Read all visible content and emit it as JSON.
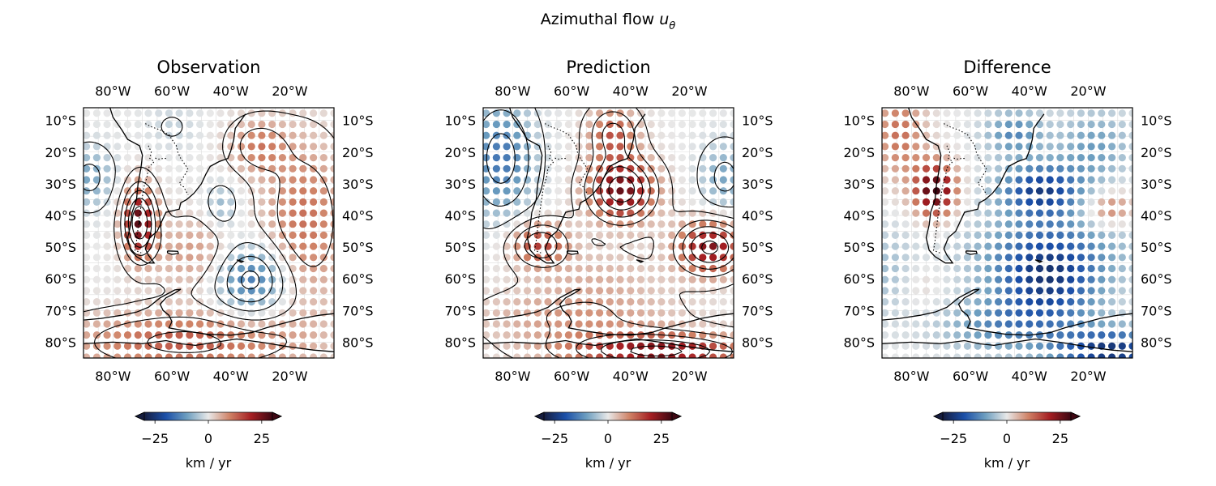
{
  "figure": {
    "title": "Azimuthal flow",
    "title_symbol": "u",
    "title_subscript": "θ"
  },
  "panels": [
    {
      "key": "observation",
      "title": "Observation",
      "xticks": [
        "80°W",
        "60°W",
        "40°W",
        "20°W"
      ],
      "yticks": [
        "10°S",
        "20°S",
        "30°S",
        "40°S",
        "50°S",
        "60°S",
        "70°S",
        "80°S"
      ],
      "colorbar": {
        "ticks": [
          "−25",
          "0",
          "25"
        ],
        "label": "km / yr"
      }
    },
    {
      "key": "prediction",
      "title": "Prediction",
      "xticks": [
        "80°W",
        "60°W",
        "40°W",
        "20°W"
      ],
      "yticks": [
        "10°S",
        "20°S",
        "30°S",
        "40°S",
        "50°S",
        "60°S",
        "70°S",
        "80°S"
      ],
      "colorbar": {
        "ticks": [
          "−25",
          "0",
          "25"
        ],
        "label": "km / yr"
      }
    },
    {
      "key": "difference",
      "title": "Difference",
      "xticks": [
        "80°W",
        "60°W",
        "40°W",
        "20°W"
      ],
      "yticks": [
        "10°S",
        "20°S",
        "30°S",
        "40°S",
        "50°S",
        "60°S",
        "70°S",
        "80°S"
      ],
      "colorbar": {
        "ticks": [
          "−25",
          "0",
          "25"
        ],
        "label": "km / yr"
      }
    }
  ],
  "chart_data": [
    {
      "type": "heatmap",
      "title": "Observation",
      "xlim": [
        -90,
        -5
      ],
      "ylim": [
        -85,
        -6
      ],
      "x_label_side": "top and bottom",
      "y_label_side": "left and right",
      "colormap": "balance",
      "clim": [
        -30,
        30
      ],
      "colorbar_extend": "both",
      "colorbar_ticks": [
        -25,
        0,
        25
      ],
      "colorbar_label": "km / yr",
      "colorbar_colors": [
        "#161d3f",
        "#1b4fa8",
        "#6e9fc0",
        "#e8e8e8",
        "#cf8266",
        "#a51f23",
        "#3d0712"
      ],
      "grid_spacing_deg": 3.5,
      "contours": true,
      "coastlines": true,
      "features": [
        {
          "lon": -71,
          "lat": -42,
          "amp": 27,
          "sx": 4,
          "sy": 8
        },
        {
          "lon": -33,
          "lat": -60,
          "amp": -16,
          "sx": 9,
          "sy": 8
        },
        {
          "lon": -43,
          "lat": -37,
          "amp": -7,
          "sx": 4,
          "sy": 5
        },
        {
          "lon": -31,
          "lat": -18,
          "amp": 10,
          "sx": 7,
          "sy": 6
        },
        {
          "lon": -88,
          "lat": -28,
          "amp": -9,
          "sx": 6,
          "sy": 7
        },
        {
          "lon": -55,
          "lat": -80,
          "amp": 14,
          "sx": 28,
          "sy": 7
        },
        {
          "lon": -15,
          "lat": -42,
          "amp": 12,
          "sx": 10,
          "sy": 18
        },
        {
          "lon": -52,
          "lat": -52,
          "amp": 8,
          "sx": 10,
          "sy": 8
        },
        {
          "lon": -60,
          "lat": -12,
          "amp": -3,
          "sx": 6,
          "sy": 5
        }
      ]
    },
    {
      "type": "heatmap",
      "title": "Prediction",
      "xlim": [
        -90,
        -5
      ],
      "ylim": [
        -85,
        -6
      ],
      "x_label_side": "top and bottom",
      "y_label_side": "left and right",
      "colormap": "balance",
      "clim": [
        -30,
        30
      ],
      "colorbar_extend": "both",
      "colorbar_ticks": [
        -25,
        0,
        25
      ],
      "colorbar_label": "km / yr",
      "colorbar_colors": [
        "#161d3f",
        "#1b4fa8",
        "#6e9fc0",
        "#e8e8e8",
        "#cf8266",
        "#a51f23",
        "#3d0712"
      ],
      "grid_spacing_deg": 3.5,
      "contours": true,
      "coastlines": true,
      "features": [
        {
          "lon": -43,
          "lat": -32,
          "amp": 26,
          "sx": 8,
          "sy": 7
        },
        {
          "lon": -84,
          "lat": -22,
          "amp": -15,
          "sx": 8,
          "sy": 13
        },
        {
          "lon": -13,
          "lat": -50,
          "amp": 24,
          "sx": 8,
          "sy": 6
        },
        {
          "lon": -71,
          "lat": -49,
          "amp": 17,
          "sx": 7,
          "sy": 5
        },
        {
          "lon": -30,
          "lat": -83,
          "amp": 23,
          "sx": 22,
          "sy": 4
        },
        {
          "lon": -58,
          "lat": -72,
          "amp": 8,
          "sx": 24,
          "sy": 7
        },
        {
          "lon": -46,
          "lat": -14,
          "amp": 14,
          "sx": 6,
          "sy": 6
        },
        {
          "lon": -8,
          "lat": -28,
          "amp": -9,
          "sx": 6,
          "sy": 8
        },
        {
          "lon": -50,
          "lat": -58,
          "amp": 4,
          "sx": 14,
          "sy": 6
        }
      ]
    },
    {
      "type": "heatmap",
      "title": "Difference",
      "xlim": [
        -90,
        -5
      ],
      "ylim": [
        -85,
        -6
      ],
      "x_label_side": "top and bottom",
      "y_label_side": "left and right",
      "colormap": "balance",
      "clim": [
        -30,
        30
      ],
      "colorbar_extend": "both",
      "colorbar_ticks": [
        -25,
        0,
        25
      ],
      "colorbar_label": "km / yr",
      "colorbar_colors": [
        "#161d3f",
        "#1b4fa8",
        "#6e9fc0",
        "#e8e8e8",
        "#cf8266",
        "#a51f23",
        "#3d0712"
      ],
      "grid_spacing_deg": 3.5,
      "contours": false,
      "coastlines": true,
      "features": [
        {
          "lon": -72,
          "lat": -32,
          "amp": 30,
          "sx": 5,
          "sy": 6
        },
        {
          "lon": -84,
          "lat": -14,
          "amp": 12,
          "sx": 6,
          "sy": 10
        },
        {
          "lon": -36,
          "lat": -32,
          "amp": -23,
          "sx": 10,
          "sy": 6
        },
        {
          "lon": -34,
          "lat": -62,
          "amp": -21,
          "sx": 13,
          "sy": 10
        },
        {
          "lon": -12,
          "lat": -83,
          "amp": -25,
          "sx": 14,
          "sy": 5
        },
        {
          "lon": -13,
          "lat": -38,
          "amp": 12,
          "sx": 6,
          "sy": 4
        },
        {
          "lon": -33,
          "lat": -50,
          "amp": -10,
          "sx": 20,
          "sy": 8
        },
        {
          "lon": -18,
          "lat": -18,
          "amp": -10,
          "sx": 9,
          "sy": 8
        },
        {
          "lon": -45,
          "lat": -14,
          "amp": -13,
          "sx": 7,
          "sy": 5
        },
        {
          "lon": -88,
          "lat": -58,
          "amp": -6,
          "sx": 7,
          "sy": 10
        },
        {
          "lon": -52,
          "lat": -75,
          "amp": -10,
          "sx": 14,
          "sy": 6
        },
        {
          "lon": -78,
          "lat": -62,
          "amp": 3,
          "sx": 6,
          "sy": 6
        }
      ]
    }
  ]
}
